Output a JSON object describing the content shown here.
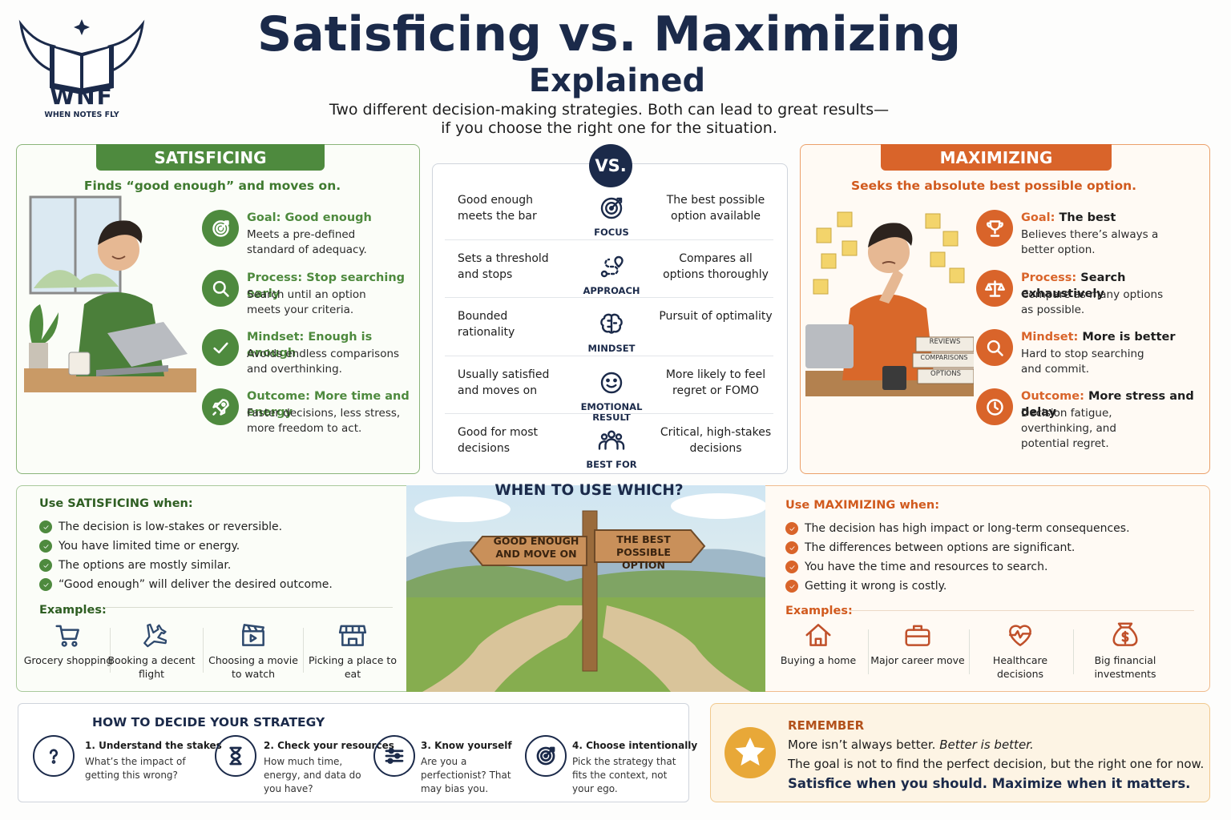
{
  "header": {
    "logo_mark": "WNF",
    "logo_tagline": "WHEN NOTES FLY",
    "title": "Satisficing vs. Maximizing",
    "title_line2": "Explained",
    "subtitle": [
      "Two different decision-making strategies. Both can lead to great results—",
      "if you choose the right one for the situation."
    ]
  },
  "satisficing": {
    "heading": "SATISFICING",
    "tagline": "Finds “good enough” and moves on.",
    "items": [
      {
        "label": "Goal:",
        "value": "Good enough",
        "text": "Meets a pre-defined standard of adequacy."
      },
      {
        "label": "Process:",
        "value": "Stop searching early",
        "text": "Search until an option meets your criteria."
      },
      {
        "label": "Mindset:",
        "value": "Enough is enough",
        "text": "Avoids endless comparisons and overthinking."
      },
      {
        "label": "Outcome:",
        "value": "More time and energy",
        "text": "Faster decisions, less stress, more freedom to act."
      }
    ]
  },
  "comparison": {
    "vs": "VS.",
    "rows": [
      {
        "left": "Good enough meets the bar",
        "label": "FOCUS",
        "right": "The best possible option available"
      },
      {
        "left": "Sets a threshold and stops",
        "label": "APPROACH",
        "right": "Compares all options thoroughly"
      },
      {
        "left": "Bounded rationality",
        "label": "MINDSET",
        "right": "Pursuit of optimality"
      },
      {
        "left": "Usually satisfied and moves on",
        "label": "EMOTIONAL RESULT",
        "right": "More likely to feel regret or FOMO"
      },
      {
        "left": "Good for most decisions",
        "label": "BEST FOR",
        "right": "Critical, high-stakes decisions"
      }
    ]
  },
  "maximizing": {
    "heading": "MAXIMIZING",
    "tagline": "Seeks the absolute best possible option.",
    "books": [
      "REVIEWS",
      "COMPARISONS",
      "OPTIONS"
    ],
    "items": [
      {
        "label": "Goal:",
        "value": "The best",
        "text": "Believes there’s always a better option."
      },
      {
        "label": "Process:",
        "value": "Search exhaustively",
        "text": "Compare as many options as possible."
      },
      {
        "label": "Mindset:",
        "value": "More is better",
        "text": "Hard to stop searching and commit."
      },
      {
        "label": "Outcome:",
        "value": "More stress and delay",
        "text": "Decision fatigue, overthinking, and potential regret."
      }
    ]
  },
  "when": {
    "title": "WHEN TO USE WHICH?",
    "sign_left": "GOOD ENOUGH AND MOVE ON",
    "sign_right": "THE BEST POSSIBLE OPTION"
  },
  "use_satisficing": {
    "heading": "Use SATISFICING when:",
    "conditions": [
      "The decision is low-stakes or reversible.",
      "You have limited time or energy.",
      "The options are mostly similar.",
      "“Good enough” will deliver the desired outcome."
    ],
    "examples_label": "Examples:",
    "examples": [
      "Grocery shopping",
      "Booking a decent flight",
      "Choosing a movie to watch",
      "Picking a place to eat"
    ]
  },
  "use_maximizing": {
    "heading": "Use MAXIMIZING when:",
    "conditions": [
      "The decision has high impact or long-term consequences.",
      "The differences between options are significant.",
      "You have the time and resources to search.",
      "Getting it wrong is costly."
    ],
    "examples_label": "Examples:",
    "examples": [
      "Buying a home",
      "Major career move",
      "Healthcare decisions",
      "Big financial investments"
    ]
  },
  "how_to": {
    "title": "HOW TO DECIDE YOUR STRATEGY",
    "steps": [
      {
        "title": "1. Understand the stakes",
        "text": "What’s the impact of getting this wrong?"
      },
      {
        "title": "2. Check your resources",
        "text": "How much time, energy, and data do you have?"
      },
      {
        "title": "3. Know yourself",
        "text": "Are you a perfectionist? That may bias you."
      },
      {
        "title": "4. Choose intentionally",
        "text": "Pick the strategy that fits the context, not your ego."
      }
    ]
  },
  "remember": {
    "title": "REMEMBER",
    "line1": "More isn’t always better.",
    "line1_emphasis": "Better is better.",
    "line2": "The goal is not to find the perfect decision, but the right one for now.",
    "line3": "Satisfice when you should. Maximize when it matters."
  }
}
